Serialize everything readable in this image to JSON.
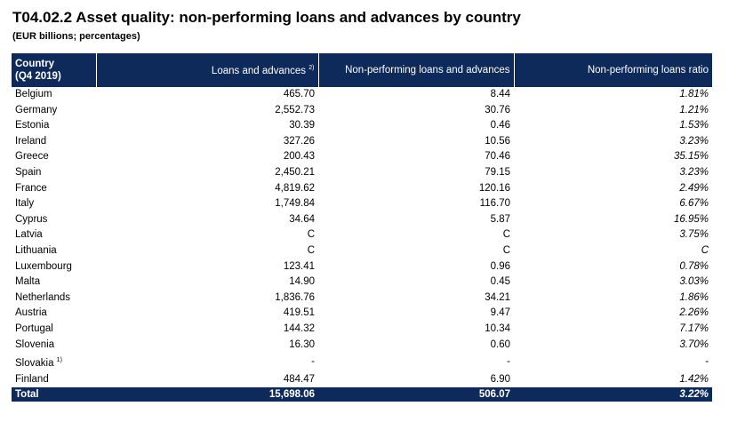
{
  "title": "T04.02.2 Asset quality: non-performing loans and advances by country",
  "subtitle": "(EUR billions; percentages)",
  "header": {
    "country_line1": "Country",
    "country_line2": "(Q4 2019)",
    "loans": "Loans and advances",
    "loans_note": "2)",
    "npl": "Non-performing loans and advances",
    "ratio": "Non-performing loans ratio"
  },
  "rows": [
    {
      "country": "Belgium",
      "note": "",
      "loans": "465.70",
      "npl": "8.44",
      "ratio": "1.81%"
    },
    {
      "country": "Germany",
      "note": "",
      "loans": "2,552.73",
      "npl": "30.76",
      "ratio": "1.21%"
    },
    {
      "country": "Estonia",
      "note": "",
      "loans": "30.39",
      "npl": "0.46",
      "ratio": "1.53%"
    },
    {
      "country": "Ireland",
      "note": "",
      "loans": "327.26",
      "npl": "10.56",
      "ratio": "3.23%"
    },
    {
      "country": "Greece",
      "note": "",
      "loans": "200.43",
      "npl": "70.46",
      "ratio": "35.15%"
    },
    {
      "country": "Spain",
      "note": "",
      "loans": "2,450.21",
      "npl": "79.15",
      "ratio": "3.23%"
    },
    {
      "country": "France",
      "note": "",
      "loans": "4,819.62",
      "npl": "120.16",
      "ratio": "2.49%"
    },
    {
      "country": "Italy",
      "note": "",
      "loans": "1,749.84",
      "npl": "116.70",
      "ratio": "6.67%"
    },
    {
      "country": "Cyprus",
      "note": "",
      "loans": "34.64",
      "npl": "5.87",
      "ratio": "16.95%"
    },
    {
      "country": "Latvia",
      "note": "",
      "loans": "C",
      "npl": "C",
      "ratio": "3.75%"
    },
    {
      "country": "Lithuania",
      "note": "",
      "loans": "C",
      "npl": "C",
      "ratio": "C"
    },
    {
      "country": "Luxembourg",
      "note": "",
      "loans": "123.41",
      "npl": "0.96",
      "ratio": "0.78%"
    },
    {
      "country": "Malta",
      "note": "",
      "loans": "14.90",
      "npl": "0.45",
      "ratio": "3.03%"
    },
    {
      "country": "Netherlands",
      "note": "",
      "loans": "1,836.76",
      "npl": "34.21",
      "ratio": "1.86%"
    },
    {
      "country": "Austria",
      "note": "",
      "loans": "419.51",
      "npl": "9.47",
      "ratio": "2.26%"
    },
    {
      "country": "Portugal",
      "note": "",
      "loans": "144.32",
      "npl": "10.34",
      "ratio": "7.17%"
    },
    {
      "country": "Slovenia",
      "note": "",
      "loans": "16.30",
      "npl": "0.60",
      "ratio": "3.70%"
    },
    {
      "country": "Slovakia",
      "note": "1)",
      "loans": "-",
      "npl": "-",
      "ratio": "-"
    },
    {
      "country": "Finland",
      "note": "",
      "loans": "484.47",
      "npl": "6.90",
      "ratio": "1.42%"
    }
  ],
  "total": {
    "country": "Total",
    "loans": "15,698.06",
    "npl": "506.07",
    "ratio": "3.22%"
  }
}
